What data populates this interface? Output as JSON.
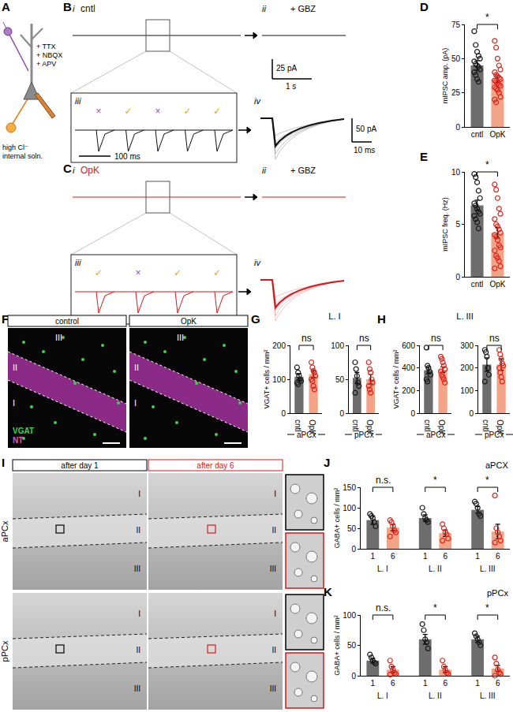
{
  "figure": {
    "A": {
      "label": "A",
      "drugs": [
        "+ TTX",
        "+ NBQX",
        "+ APV"
      ],
      "internal": [
        "high Cl⁻",
        "internal soln."
      ]
    },
    "B": {
      "label": "B",
      "condition": "cntl",
      "subpanels": [
        "i",
        "ii",
        "iii",
        "iv"
      ],
      "drug": "+ GBZ",
      "events": [
        {
          "text": "×",
          "color": "#9b4fc0"
        },
        {
          "text": "✓",
          "color": "#f0a020"
        },
        {
          "text": "×",
          "color": "#9b4fc0"
        },
        {
          "text": "✓",
          "color": "#f0a020"
        },
        {
          "text": "✓",
          "color": "#f0a020"
        }
      ],
      "scale_bars": [
        [
          "25 pA",
          "1 s"
        ],
        [
          "100 ms"
        ],
        [
          "50 pA",
          "10 ms"
        ]
      ]
    },
    "C": {
      "label": "C",
      "condition": "OpK",
      "subpanels": [
        "i",
        "ii",
        "iii",
        "iv"
      ],
      "drug": "+ GBZ",
      "events": [
        {
          "text": "✓",
          "color": "#f0a020"
        },
        {
          "text": "×",
          "color": "#9b4fc0"
        },
        {
          "text": "✓",
          "color": "#f0a020"
        },
        {
          "text": "✓",
          "color": "#f0a020"
        }
      ]
    },
    "F": {
      "label": "F",
      "images": [
        "control",
        "OpK"
      ],
      "layers": [
        "I",
        "II",
        "III"
      ],
      "stains": [
        "VGAT",
        "NT"
      ]
    },
    "I": {
      "label": "I",
      "images": [
        "after day 1",
        "after day 6"
      ],
      "regions": [
        "aPCx",
        "pPCx"
      ],
      "layers": [
        "I",
        "II",
        "III"
      ]
    }
  },
  "chart_data": [
    {
      "label": "D",
      "type": "bar",
      "ylabel": "mIPSC amp. (pA)",
      "subplots": [
        {
          "categories": [
            "cntl",
            "OpK"
          ],
          "values": [
            45,
            35
          ],
          "errors": [
            3.5,
            2.5
          ],
          "colors": [
            "#6d6d6d",
            "#f4a486"
          ],
          "points": [
            [
              70,
              60,
              55,
              52,
              50,
              48,
              46,
              45,
              44,
              42,
              40,
              38,
              35,
              33
            ],
            [
              63,
              58,
              50,
              45,
              42,
              40,
              38,
              37,
              36,
              35,
              34,
              33,
              32,
              31,
              30,
              29,
              28,
              27,
              25,
              22,
              20,
              18
            ]
          ],
          "ylim": [
            0,
            75
          ],
          "yticks": [
            0,
            25,
            50,
            75
          ],
          "significance": [
            {
              "pair": [
                0,
                1
              ],
              "text": "*"
            }
          ]
        }
      ]
    },
    {
      "label": "E",
      "type": "bar",
      "ylabel": "mIPSC freq. (Hz)",
      "subplots": [
        {
          "categories": [
            "cntl",
            "OpK"
          ],
          "values": [
            6.8,
            4.2
          ],
          "errors": [
            0.5,
            0.5
          ],
          "colors": [
            "#6d6d6d",
            "#f4a486"
          ],
          "points": [
            [
              9.8,
              9.5,
              9,
              8.2,
              7.5,
              7,
              6.8,
              6.5,
              6.2,
              6,
              5.8,
              5.5,
              5.2,
              4.6
            ],
            [
              8.8,
              8.3,
              7.5,
              6.5,
              6,
              5.5,
              5,
              4.8,
              4.5,
              4.2,
              4,
              3.8,
              3.5,
              3,
              2.8,
              2.5,
              2,
              1.8,
              1.5,
              1,
              0.8
            ]
          ],
          "ylim": [
            0,
            10
          ],
          "yticks": [
            0,
            5,
            10
          ],
          "significance": [
            {
              "pair": [
                0,
                1
              ],
              "text": "*"
            }
          ]
        }
      ]
    },
    {
      "label": "G",
      "type": "bar",
      "title": "L. I",
      "ylabel": "VGAT+ cells / mm²",
      "subplots": [
        {
          "group": "aPCx",
          "categories": [
            "cntl",
            "OpK"
          ],
          "values": [
            107,
            115
          ],
          "errors": [
            10,
            10
          ],
          "colors": [
            "#6d6d6d",
            "#f4a486"
          ],
          "points": [
            [
              135,
              120,
              110,
              100,
              95,
              90,
              85
            ],
            [
              150,
              135,
              125,
              120,
              110,
              100,
              95,
              80,
              70
            ]
          ],
          "ylim": [
            0,
            200
          ],
          "yticks": [
            0,
            100,
            200
          ],
          "significance": [
            {
              "pair": [
                0,
                1
              ],
              "text": "ns"
            }
          ]
        },
        {
          "group": "pPCx",
          "categories": [
            "cntl",
            "OpK"
          ],
          "values": [
            52,
            50
          ],
          "errors": [
            8,
            7
          ],
          "colors": [
            "#6d6d6d",
            "#f4a486"
          ],
          "points": [
            [
              75,
              65,
              55,
              45,
              40,
              30
            ],
            [
              75,
              65,
              60,
              50,
              45,
              40,
              35,
              30
            ]
          ],
          "ylim": [
            0,
            100
          ],
          "yticks": [
            0,
            50,
            100
          ],
          "significance": [
            {
              "pair": [
                0,
                1
              ],
              "text": "ns"
            }
          ]
        }
      ]
    },
    {
      "label": "H",
      "type": "bar",
      "title": "L. III",
      "ylabel": "VGAT+ cells / mm²",
      "subplots": [
        {
          "group": "aPCx",
          "categories": [
            "cntl",
            "OpK"
          ],
          "values": [
            380,
            385
          ],
          "errors": [
            30,
            25
          ],
          "colors": [
            "#6d6d6d",
            "#f4a486"
          ],
          "points": [
            [
              580,
              420,
              400,
              370,
              340,
              300,
              280
            ],
            [
              500,
              480,
              450,
              420,
              390,
              370,
              340,
              320,
              300,
              270
            ]
          ],
          "ylim": [
            0,
            600
          ],
          "yticks": [
            0,
            200,
            400,
            600
          ],
          "significance": [
            {
              "pair": [
                0,
                1
              ],
              "text": "ns"
            }
          ]
        },
        {
          "group": "pPCx",
          "categories": [
            "cntl",
            "OpK"
          ],
          "values": [
            215,
            215
          ],
          "errors": [
            30,
            25
          ],
          "colors": [
            "#6d6d6d",
            "#f4a486"
          ],
          "points": [
            [
              280,
              270,
              250,
              200,
              170,
              140
            ],
            [
              280,
              260,
              240,
              220,
              210,
              200,
              180,
              160,
              140
            ]
          ],
          "ylim": [
            0,
            300
          ],
          "yticks": [
            0,
            100,
            200,
            300
          ],
          "significance": [
            {
              "pair": [
                0,
                1
              ],
              "text": "ns"
            }
          ]
        }
      ]
    },
    {
      "label": "J",
      "type": "bar",
      "title": "aPCX",
      "ylabel": "GABA+ cells / mm²",
      "subplots": [
        {
          "categories": [
            "1",
            "6",
            "1",
            "6",
            "1",
            "6"
          ],
          "groups": [
            "L. I",
            "L. II",
            "L. III"
          ],
          "values": [
            70,
            52,
            75,
            38,
            95,
            42
          ],
          "errors": [
            10,
            8,
            8,
            8,
            8,
            18
          ],
          "colors": [
            "#6d6d6d",
            "#f4a486",
            "#6d6d6d",
            "#f4a486",
            "#6d6d6d",
            "#f4a486"
          ],
          "points": [
            [
              85,
              80,
              75,
              65,
              55
            ],
            [
              70,
              65,
              55,
              45,
              40,
              30
            ],
            [
              100,
              85,
              75,
              70,
              65
            ],
            [
              60,
              50,
              40,
              35,
              25,
              20
            ],
            [
              115,
              110,
              100,
              85,
              80
            ],
            [
              130,
              50,
              40,
              30,
              20,
              15
            ]
          ],
          "ylim": [
            0,
            150
          ],
          "yticks": [
            0,
            50,
            100,
            150
          ],
          "significance": [
            {
              "pair": [
                0,
                1
              ],
              "text": "n.s."
            },
            {
              "pair": [
                2,
                3
              ],
              "text": "*"
            },
            {
              "pair": [
                4,
                5
              ],
              "text": "*"
            }
          ]
        }
      ]
    },
    {
      "label": "K",
      "type": "bar",
      "title": "pPCx",
      "ylabel": "GABA+ cells / mm²",
      "subplots": [
        {
          "categories": [
            "1",
            "6",
            "1",
            "6",
            "1",
            "6"
          ],
          "groups": [
            "L. I",
            "L. II",
            "L. III"
          ],
          "values": [
            25,
            10,
            60,
            10,
            60,
            12
          ],
          "errors": [
            4,
            5,
            8,
            5,
            5,
            5
          ],
          "colors": [
            "#6d6d6d",
            "#f4a486",
            "#6d6d6d",
            "#f4a486",
            "#6d6d6d",
            "#f4a486"
          ],
          "points": [
            [
              35,
              30,
              25,
              22,
              20
            ],
            [
              25,
              15,
              10,
              5,
              3,
              2
            ],
            [
              85,
              75,
              60,
              55,
              45
            ],
            [
              25,
              15,
              10,
              5,
              3
            ],
            [
              70,
              65,
              60,
              55,
              50
            ],
            [
              30,
              20,
              10,
              5,
              3,
              0
            ]
          ],
          "ylim": [
            0,
            100
          ],
          "yticks": [
            0,
            50,
            100
          ],
          "significance": [
            {
              "pair": [
                0,
                1
              ],
              "text": "n.s."
            },
            {
              "pair": [
                2,
                3
              ],
              "text": "*"
            },
            {
              "pair": [
                4,
                5
              ],
              "text": "*"
            }
          ]
        }
      ]
    }
  ]
}
